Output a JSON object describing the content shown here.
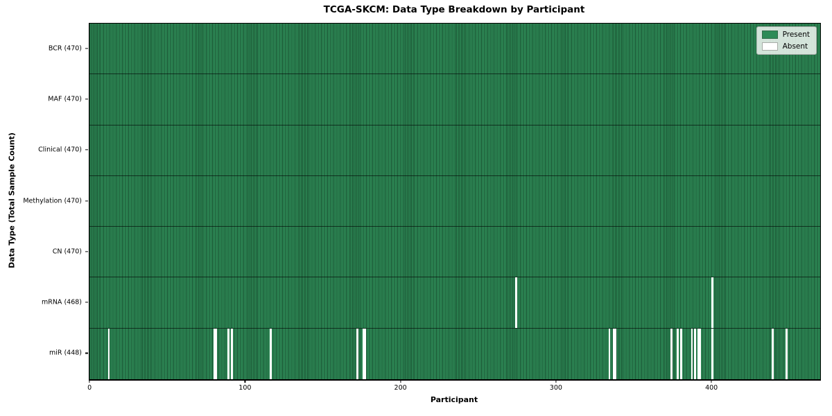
{
  "chart_data": {
    "type": "heatmap",
    "title": "TCGA-SKCM: Data Type Breakdown by Participant",
    "xlabel": "Participant",
    "ylabel": "Data Type (Total Sample Count)",
    "n_participants": 470,
    "x_ticks": [
      0,
      100,
      200,
      300,
      400
    ],
    "legend_position": "upper right",
    "grid": "cell-edges",
    "colors": {
      "present": "#2e8b57",
      "absent": "#ffffff"
    },
    "legend": [
      {
        "label": "Present",
        "color": "#2e8b57"
      },
      {
        "label": "Absent",
        "color": "#ffffff"
      }
    ],
    "rows": [
      {
        "label": "BCR (470)",
        "data_type": "BCR",
        "total_samples": 470,
        "absent_participants": []
      },
      {
        "label": "MAF (470)",
        "data_type": "MAF",
        "total_samples": 470,
        "absent_participants": []
      },
      {
        "label": "Clinical (470)",
        "data_type": "Clinical",
        "total_samples": 470,
        "absent_participants": []
      },
      {
        "label": "Methylation (470)",
        "data_type": "Methylation",
        "total_samples": 470,
        "absent_participants": []
      },
      {
        "label": "CN (470)",
        "data_type": "CN",
        "total_samples": 470,
        "absent_participants": []
      },
      {
        "label": "mRNA (468)",
        "data_type": "mRNA",
        "total_samples": 468,
        "absent_participants": [
          274,
          400
        ]
      },
      {
        "label": "miR (448)",
        "data_type": "miR",
        "total_samples": 448,
        "absent_participants": [
          12,
          80,
          81,
          89,
          91,
          116,
          172,
          176,
          177,
          334,
          337,
          338,
          374,
          378,
          380,
          387,
          389,
          391,
          392,
          400,
          439,
          448
        ]
      }
    ]
  }
}
